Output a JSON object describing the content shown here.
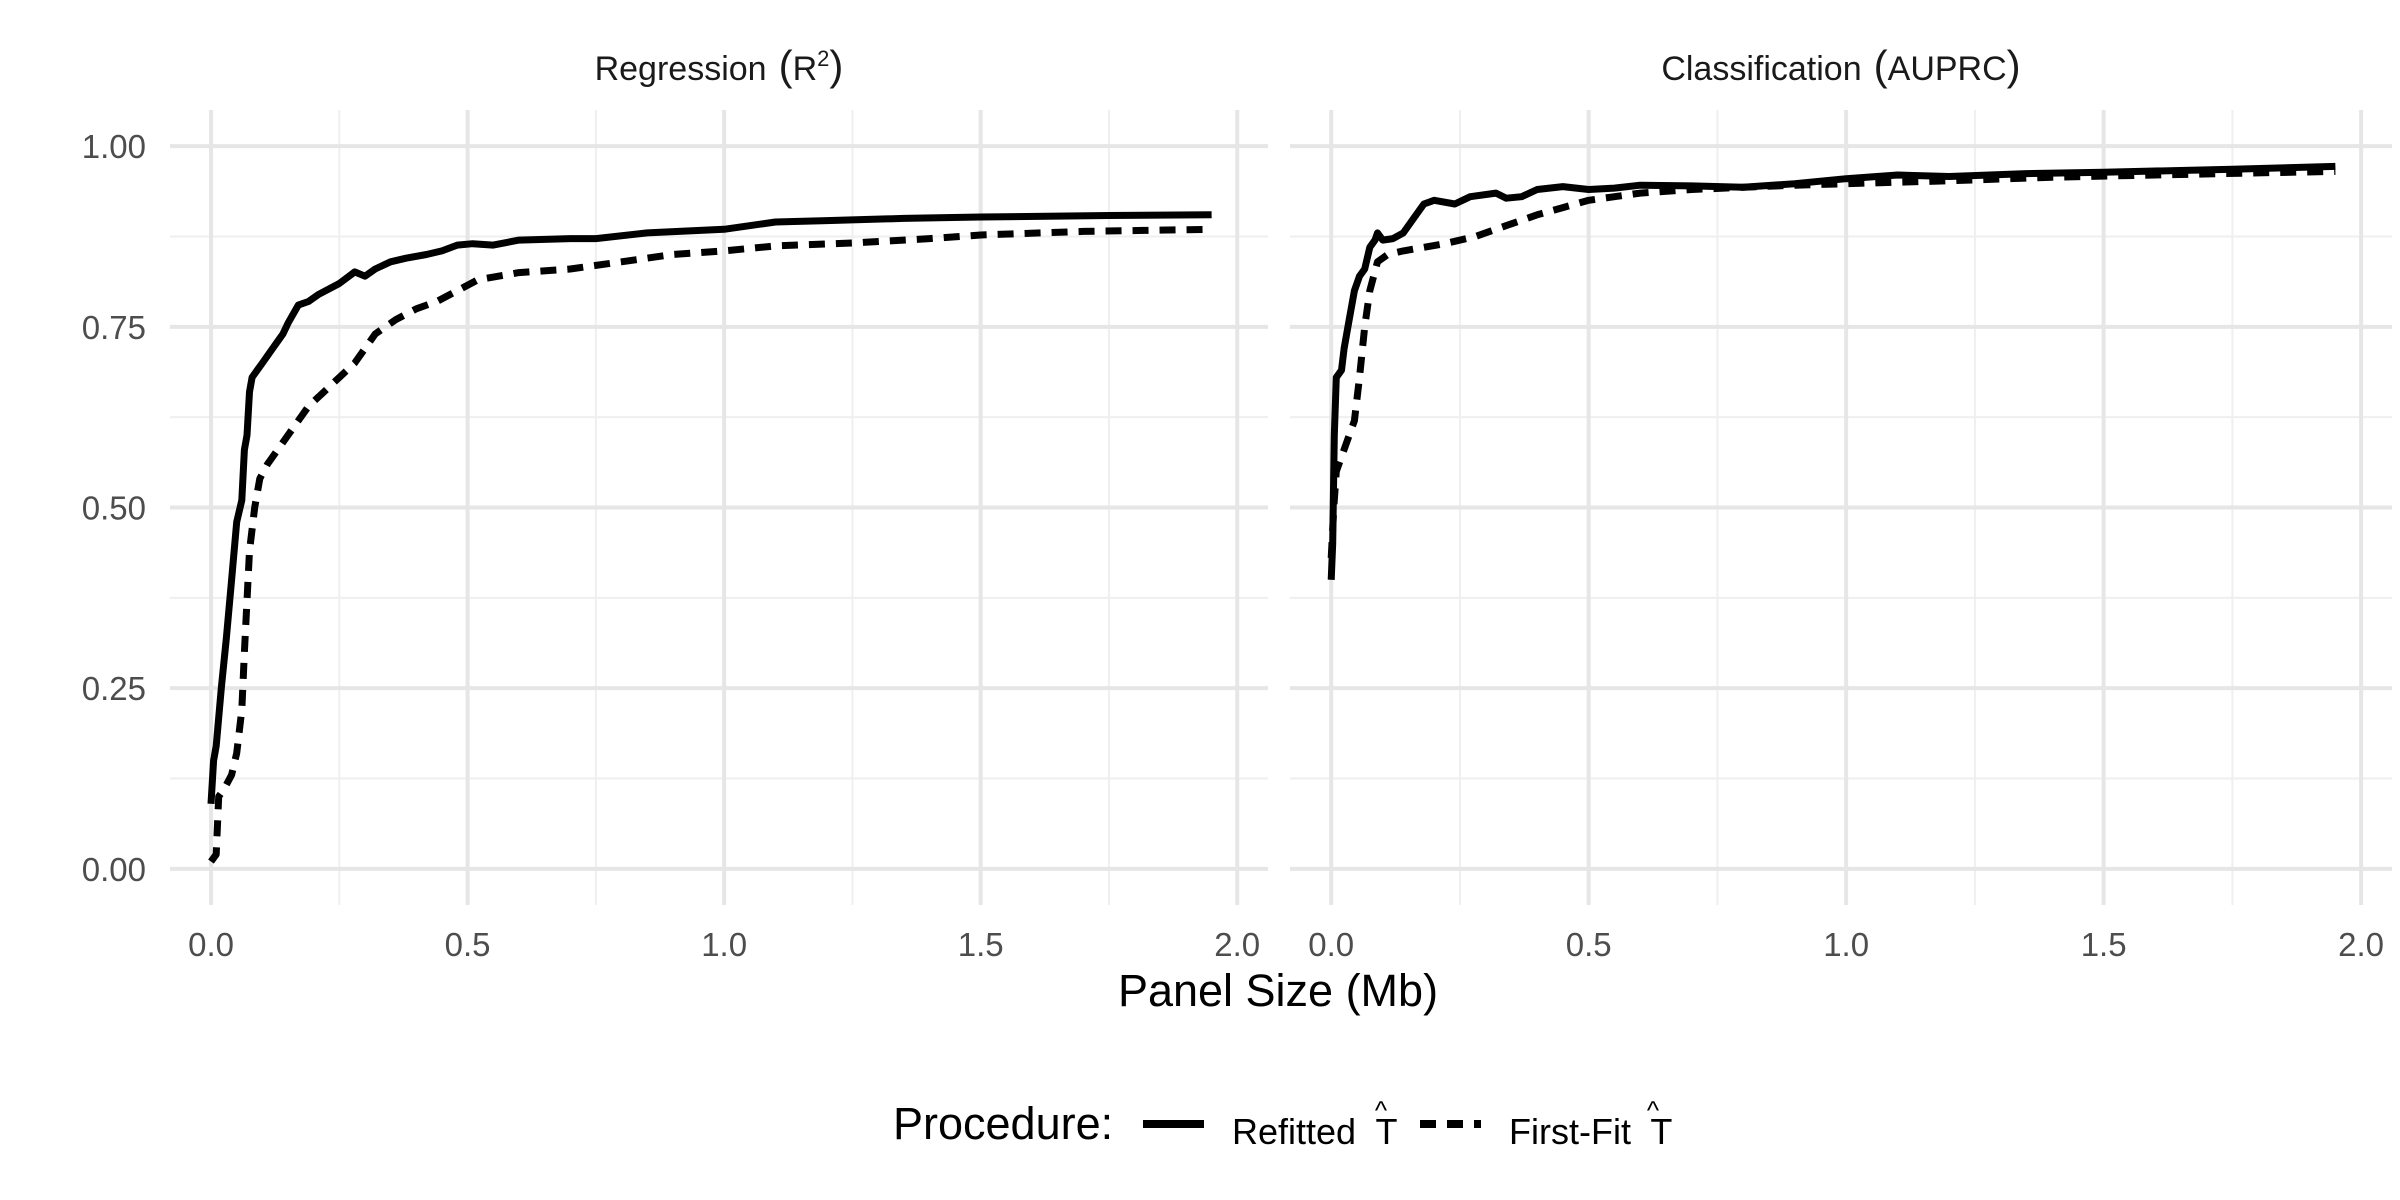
{
  "figure": {
    "x_axis_label": "Panel Size (Mb)",
    "legend": {
      "title": "Procedure:",
      "entries": [
        {
          "label": "Refitted",
          "symbol": "T",
          "accent": "^",
          "dash": "solid"
        },
        {
          "label": "First-Fit",
          "symbol": "T",
          "accent": "^",
          "dash": "dashed"
        }
      ]
    }
  },
  "chart_data": [
    {
      "type": "line",
      "title_main": "Regression",
      "title_math": "R",
      "title_sup": "2",
      "xlabel": "Panel Size (Mb)",
      "ylabel": "",
      "xlim": [
        -0.08,
        2.06
      ],
      "ylim": [
        -0.05,
        1.05
      ],
      "x_ticks": [
        0.0,
        0.5,
        1.0,
        1.5,
        2.0
      ],
      "x_tick_labels": [
        "0.0",
        "0.5",
        "1.0",
        "1.5",
        "2.0"
      ],
      "y_ticks": [
        0.0,
        0.25,
        0.5,
        0.75,
        1.0
      ],
      "y_tick_labels": [
        "0.00",
        "0.25",
        "0.50",
        "0.75",
        "1.00"
      ],
      "grid": true,
      "series": [
        {
          "name": "Refitted",
          "dash": "solid",
          "color": "#000000",
          "points": [
            [
              0.0,
              0.09
            ],
            [
              0.005,
              0.15
            ],
            [
              0.01,
              0.17
            ],
            [
              0.02,
              0.25
            ],
            [
              0.03,
              0.32
            ],
            [
              0.04,
              0.4
            ],
            [
              0.05,
              0.48
            ],
            [
              0.06,
              0.51
            ],
            [
              0.065,
              0.58
            ],
            [
              0.07,
              0.6
            ],
            [
              0.075,
              0.66
            ],
            [
              0.08,
              0.68
            ],
            [
              0.09,
              0.69
            ],
            [
              0.1,
              0.7
            ],
            [
              0.11,
              0.71
            ],
            [
              0.12,
              0.72
            ],
            [
              0.13,
              0.73
            ],
            [
              0.14,
              0.74
            ],
            [
              0.15,
              0.755
            ],
            [
              0.17,
              0.78
            ],
            [
              0.19,
              0.785
            ],
            [
              0.21,
              0.795
            ],
            [
              0.25,
              0.81
            ],
            [
              0.28,
              0.826
            ],
            [
              0.3,
              0.82
            ],
            [
              0.32,
              0.83
            ],
            [
              0.35,
              0.84
            ],
            [
              0.38,
              0.845
            ],
            [
              0.42,
              0.85
            ],
            [
              0.45,
              0.855
            ],
            [
              0.48,
              0.863
            ],
            [
              0.51,
              0.865
            ],
            [
              0.55,
              0.863
            ],
            [
              0.6,
              0.87
            ],
            [
              0.7,
              0.872
            ],
            [
              0.75,
              0.872
            ],
            [
              0.85,
              0.88
            ],
            [
              1.0,
              0.885
            ],
            [
              1.1,
              0.895
            ],
            [
              1.2,
              0.897
            ],
            [
              1.35,
              0.9
            ],
            [
              1.5,
              0.902
            ],
            [
              1.75,
              0.904
            ],
            [
              1.95,
              0.905
            ]
          ]
        },
        {
          "name": "First-Fit",
          "dash": "dashed",
          "color": "#000000",
          "points": [
            [
              0.0,
              0.01
            ],
            [
              0.01,
              0.02
            ],
            [
              0.015,
              0.1
            ],
            [
              0.025,
              0.11
            ],
            [
              0.04,
              0.13
            ],
            [
              0.05,
              0.16
            ],
            [
              0.06,
              0.22
            ],
            [
              0.065,
              0.3
            ],
            [
              0.075,
              0.44
            ],
            [
              0.085,
              0.5
            ],
            [
              0.095,
              0.54
            ],
            [
              0.11,
              0.56
            ],
            [
              0.13,
              0.58
            ],
            [
              0.16,
              0.61
            ],
            [
              0.19,
              0.64
            ],
            [
              0.22,
              0.66
            ],
            [
              0.25,
              0.68
            ],
            [
              0.28,
              0.7
            ],
            [
              0.3,
              0.72
            ],
            [
              0.32,
              0.74
            ],
            [
              0.36,
              0.76
            ],
            [
              0.4,
              0.775
            ],
            [
              0.44,
              0.785
            ],
            [
              0.48,
              0.8
            ],
            [
              0.52,
              0.815
            ],
            [
              0.6,
              0.825
            ],
            [
              0.7,
              0.83
            ],
            [
              0.8,
              0.84
            ],
            [
              0.9,
              0.85
            ],
            [
              1.0,
              0.855
            ],
            [
              1.1,
              0.862
            ],
            [
              1.25,
              0.866
            ],
            [
              1.4,
              0.872
            ],
            [
              1.5,
              0.877
            ],
            [
              1.7,
              0.882
            ],
            [
              1.95,
              0.885
            ]
          ]
        }
      ]
    },
    {
      "type": "line",
      "title_main": "Classification",
      "title_math": "AUPRC",
      "title_sup": "",
      "xlabel": "Panel Size (Mb)",
      "ylabel": "",
      "xlim": [
        -0.08,
        2.06
      ],
      "ylim": [
        -0.05,
        1.05
      ],
      "x_ticks": [
        0.0,
        0.5,
        1.0,
        1.5,
        2.0
      ],
      "x_tick_labels": [
        "0.0",
        "0.5",
        "1.0",
        "1.5",
        "2.0"
      ],
      "y_ticks": [
        0.0,
        0.25,
        0.5,
        0.75,
        1.0
      ],
      "y_tick_labels": [
        "0.00",
        "0.25",
        "0.50",
        "0.75",
        "1.00"
      ],
      "grid": true,
      "series": [
        {
          "name": "Refitted",
          "dash": "solid",
          "color": "#000000",
          "points": [
            [
              0.0,
              0.4
            ],
            [
              0.003,
              0.45
            ],
            [
              0.006,
              0.6
            ],
            [
              0.01,
              0.68
            ],
            [
              0.02,
              0.69
            ],
            [
              0.025,
              0.72
            ],
            [
              0.035,
              0.76
            ],
            [
              0.045,
              0.8
            ],
            [
              0.055,
              0.82
            ],
            [
              0.065,
              0.83
            ],
            [
              0.075,
              0.86
            ],
            [
              0.085,
              0.87
            ],
            [
              0.09,
              0.88
            ],
            [
              0.1,
              0.87
            ],
            [
              0.12,
              0.872
            ],
            [
              0.14,
              0.88
            ],
            [
              0.16,
              0.9
            ],
            [
              0.18,
              0.92
            ],
            [
              0.2,
              0.925
            ],
            [
              0.24,
              0.92
            ],
            [
              0.27,
              0.93
            ],
            [
              0.32,
              0.935
            ],
            [
              0.34,
              0.928
            ],
            [
              0.37,
              0.93
            ],
            [
              0.4,
              0.94
            ],
            [
              0.45,
              0.944
            ],
            [
              0.5,
              0.94
            ],
            [
              0.55,
              0.942
            ],
            [
              0.6,
              0.946
            ],
            [
              0.7,
              0.945
            ],
            [
              0.8,
              0.943
            ],
            [
              0.9,
              0.948
            ],
            [
              1.0,
              0.955
            ],
            [
              1.1,
              0.96
            ],
            [
              1.2,
              0.958
            ],
            [
              1.35,
              0.962
            ],
            [
              1.5,
              0.964
            ],
            [
              1.75,
              0.968
            ],
            [
              1.95,
              0.972
            ]
          ]
        },
        {
          "name": "First-Fit",
          "dash": "dashed",
          "color": "#000000",
          "points": [
            [
              0.0,
              0.43
            ],
            [
              0.005,
              0.5
            ],
            [
              0.01,
              0.55
            ],
            [
              0.02,
              0.57
            ],
            [
              0.035,
              0.6
            ],
            [
              0.045,
              0.62
            ],
            [
              0.055,
              0.68
            ],
            [
              0.065,
              0.75
            ],
            [
              0.075,
              0.8
            ],
            [
              0.09,
              0.84
            ],
            [
              0.11,
              0.85
            ],
            [
              0.14,
              0.855
            ],
            [
              0.18,
              0.86
            ],
            [
              0.22,
              0.865
            ],
            [
              0.28,
              0.875
            ],
            [
              0.34,
              0.89
            ],
            [
              0.4,
              0.905
            ],
            [
              0.45,
              0.915
            ],
            [
              0.5,
              0.925
            ],
            [
              0.55,
              0.93
            ],
            [
              0.6,
              0.935
            ],
            [
              0.7,
              0.94
            ],
            [
              0.8,
              0.943
            ],
            [
              0.9,
              0.946
            ],
            [
              1.0,
              0.948
            ],
            [
              1.2,
              0.952
            ],
            [
              1.4,
              0.957
            ],
            [
              1.6,
              0.96
            ],
            [
              1.8,
              0.963
            ],
            [
              1.95,
              0.965
            ]
          ]
        }
      ]
    }
  ]
}
